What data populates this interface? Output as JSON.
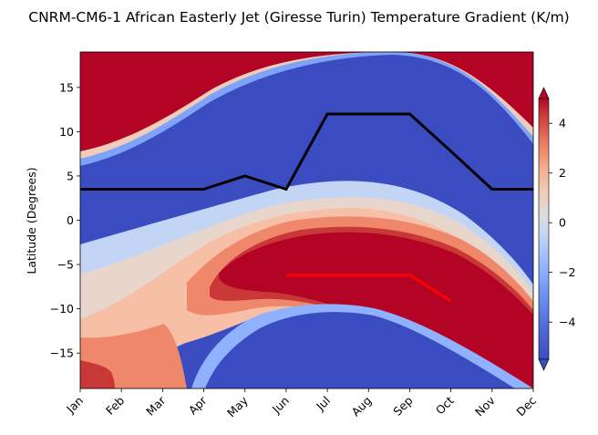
{
  "chart_data": {
    "type": "contour",
    "title": "CNRM-CM6-1 African Easterly Jet (Giresse Turin) Temperature Gradient (K/m)",
    "xlabel": "",
    "ylabel": "Latitude (Degrees)",
    "x_categories": [
      "Jan",
      "Feb",
      "Mar",
      "Apr",
      "May",
      "Jun",
      "Jul",
      "Aug",
      "Sep",
      "Oct",
      "Nov",
      "Dec"
    ],
    "yticks": [
      15,
      10,
      5,
      0,
      -5,
      -10,
      -15
    ],
    "ylim": [
      -19,
      19
    ],
    "colorbar": {
      "ticks": [
        4,
        2,
        0,
        -2,
        -4
      ],
      "range": [
        -5.5,
        5
      ],
      "levels": [
        -5,
        -4.5,
        -4,
        -3.5,
        -3,
        -2.5,
        -2,
        -1.5,
        -1,
        -0.5,
        0,
        0.5,
        1,
        1.5,
        2,
        2.5,
        3,
        3.5,
        4,
        4.5,
        5
      ],
      "colormap": "coolwarm",
      "colors": [
        "#3b4cc0",
        "#4a63d3",
        "#5b7ae5",
        "#6c8ff1",
        "#7ea3f8",
        "#8fb1fe",
        "#a1c0ff",
        "#b2cdfb",
        "#c3d5f4",
        "#d1dae9",
        "#dddcdc",
        "#e8d6cc",
        "#f1ccb8",
        "#f6bfa6",
        "#f7af91",
        "#f59c7d",
        "#ef886b",
        "#e5705a",
        "#d75445",
        "#c83836",
        "#b40426"
      ],
      "extend": "both"
    },
    "series": [
      {
        "color": "#000000",
        "x": [
          "Jan",
          "Feb",
          "Mar",
          "Apr",
          "May",
          "Jun",
          "Jul",
          "Aug",
          "Sep",
          "Oct",
          "Nov",
          "Dec"
        ],
        "y": [
          3.5,
          3.5,
          3.5,
          3.5,
          5.0,
          3.5,
          12.0,
          12.0,
          12.0,
          7.8,
          3.5,
          3.5
        ]
      },
      {
        "color": "#ff0000",
        "x": [
          "Jun",
          "Jul",
          "Aug",
          "Sep",
          "Oct"
        ],
        "y": [
          -6.2,
          -6.2,
          -6.2,
          -6.2,
          -9.1
        ]
      }
    ]
  }
}
